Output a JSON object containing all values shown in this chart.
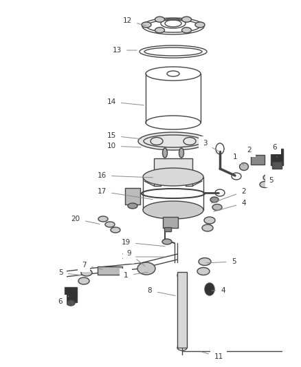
{
  "bg_color": "#ffffff",
  "line_color": "#444444",
  "label_color": "#333333",
  "label_fontsize": 7.5,
  "figsize": [
    4.38,
    5.33
  ],
  "dpi": 100
}
